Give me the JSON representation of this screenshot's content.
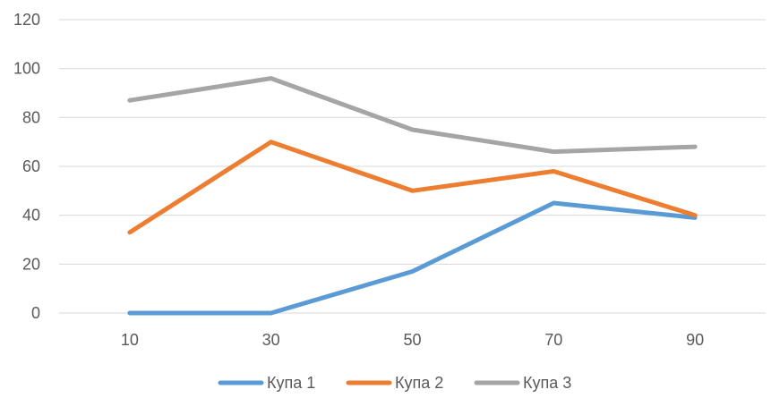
{
  "chart_data": {
    "type": "line",
    "x": [
      10,
      30,
      50,
      70,
      90
    ],
    "ylim": [
      0,
      120
    ],
    "yticks": [
      0,
      20,
      40,
      60,
      80,
      100,
      120
    ],
    "grid": true,
    "legend_position": "bottom",
    "series": [
      {
        "name": "Купа 1",
        "color": "#5b9bd5",
        "values": [
          0,
          0,
          17,
          45,
          39
        ]
      },
      {
        "name": "Купа 2",
        "color": "#ed7d31",
        "values": [
          33,
          70,
          50,
          58,
          40
        ]
      },
      {
        "name": "Купа 3",
        "color": "#a5a5a5",
        "values": [
          87,
          96,
          75,
          66,
          68
        ]
      }
    ]
  }
}
